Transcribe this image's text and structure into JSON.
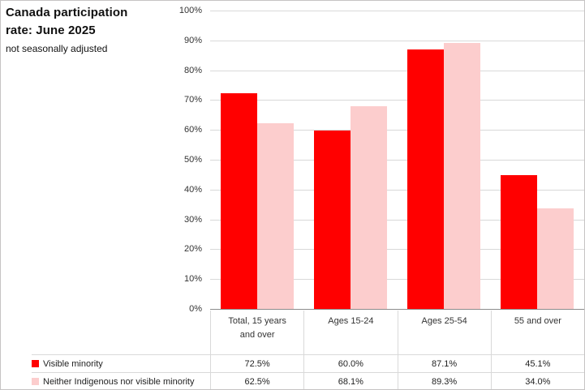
{
  "title": {
    "text": "Canada participation rate: June 2025",
    "subtitle": "not seasonally adjusted"
  },
  "colors": {
    "series_visible_minority": "#FF0000",
    "series_neither": "#FCCDCD",
    "gridline": "#D9D9D9",
    "axis_line": "#8C8C8C",
    "border": "#C6C4C4",
    "text": "#262626"
  },
  "chart_data": {
    "type": "bar",
    "title": "Canada participation rate: June 2025",
    "subtitle": "not seasonally adjusted",
    "categories": [
      "Total, 15 years and over",
      "Ages 15-24",
      "Ages 25-54",
      "55 and over"
    ],
    "series": [
      {
        "name": "Visible minority",
        "key": "visible-minority",
        "color": "#FF0000",
        "values": [
          72.5,
          60.0,
          87.1,
          45.1
        ],
        "value_labels": [
          "72.5%",
          "60.0%",
          "87.1%",
          "45.1%"
        ]
      },
      {
        "name": "Neither Indigenous nor visible minority",
        "key": "neither-indigenous-nor-visible-minority",
        "color": "#FCCDCD",
        "values": [
          62.5,
          68.1,
          89.3,
          34.0
        ],
        "value_labels": [
          "62.5%",
          "68.1%",
          "89.3%",
          "34.0%"
        ]
      }
    ],
    "xlabel": "",
    "ylabel": "",
    "ylim": [
      0,
      100
    ],
    "yticks": [
      0,
      10,
      20,
      30,
      40,
      50,
      60,
      70,
      80,
      90,
      100
    ],
    "ytick_labels": [
      "0%",
      "10%",
      "20%",
      "30%",
      "40%",
      "50%",
      "60%",
      "70%",
      "80%",
      "90%",
      "100%"
    ],
    "grid": true,
    "legend_position": "bottom-left"
  }
}
